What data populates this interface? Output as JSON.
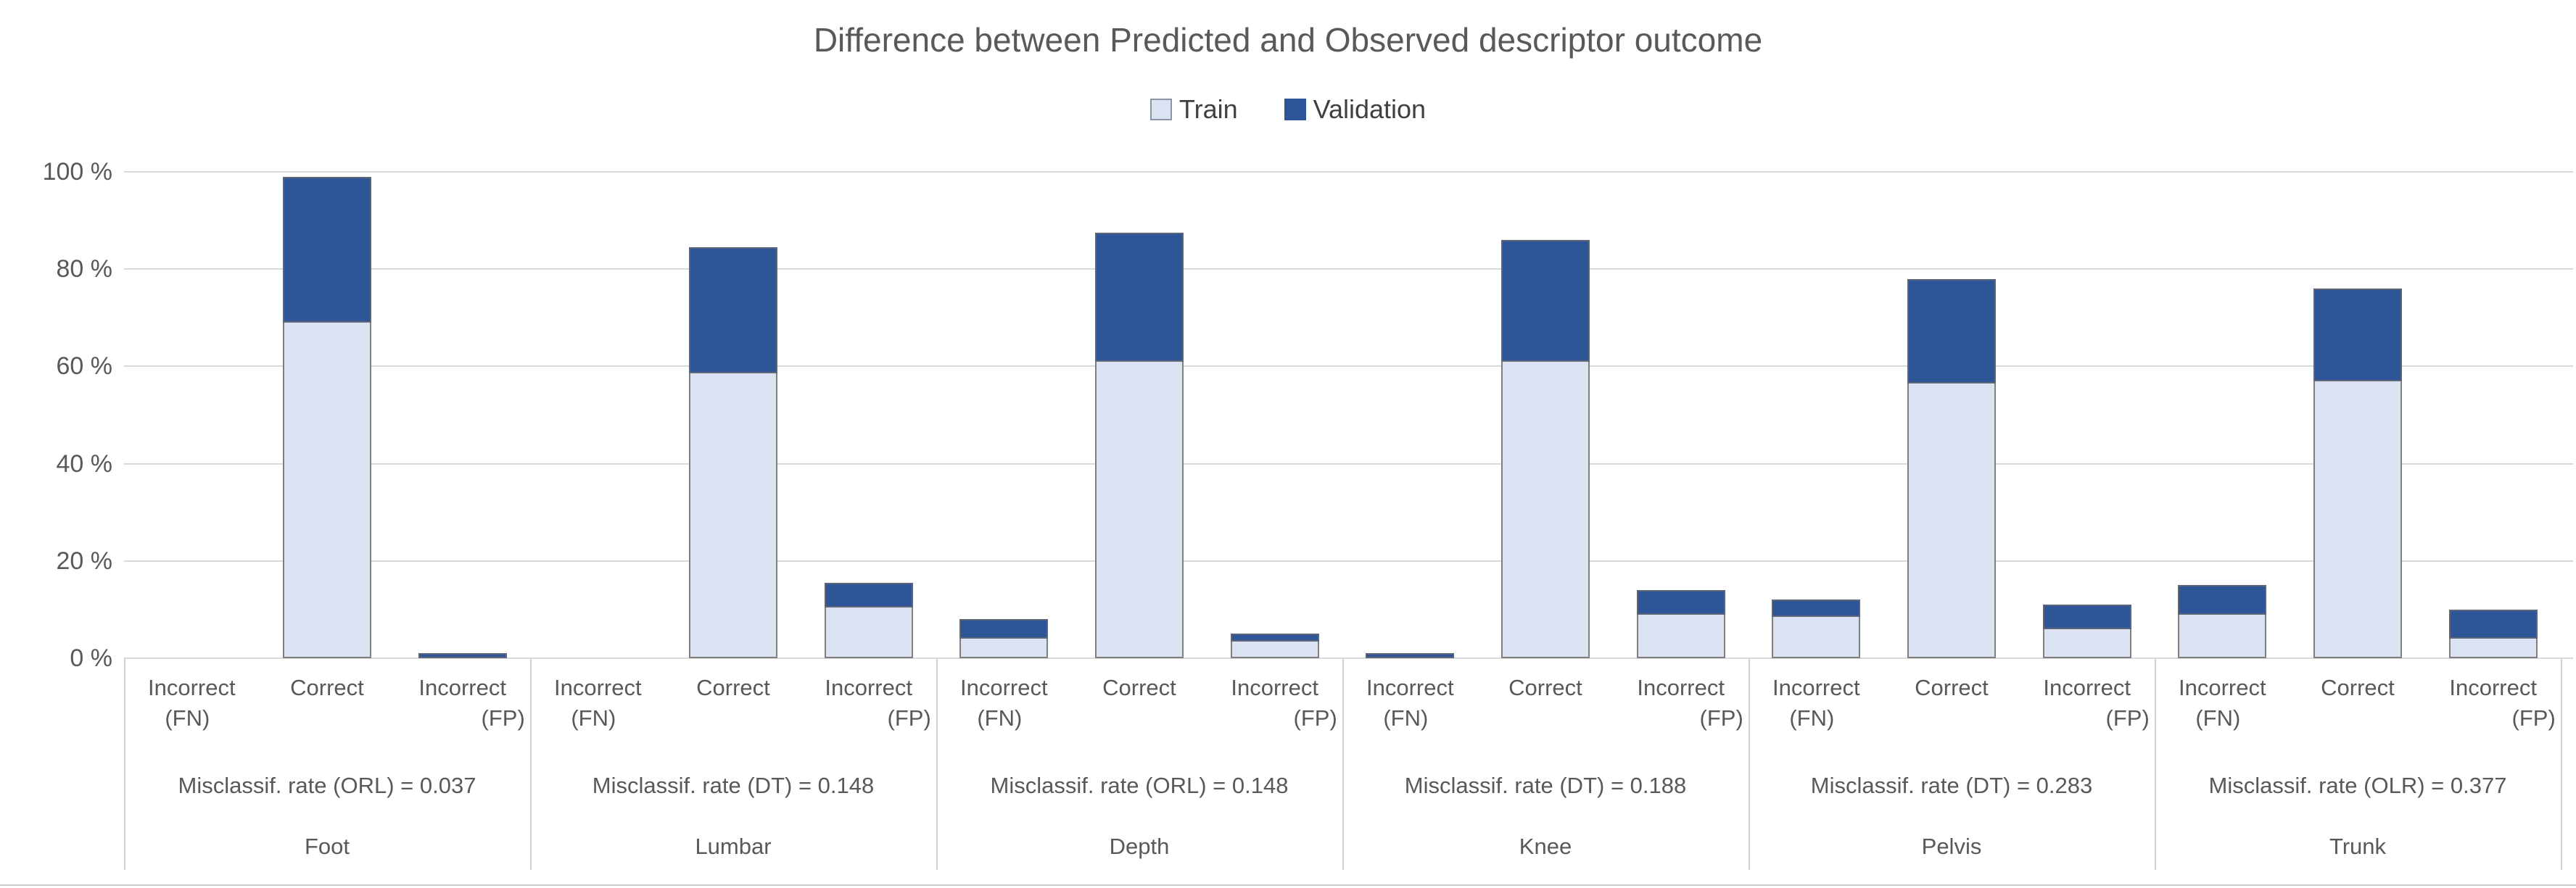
{
  "chart_data": {
    "type": "bar",
    "stacked": true,
    "title": "Difference between Predicted and Observed descriptor outcome",
    "unit": "%",
    "ylim": [
      0,
      100
    ],
    "yticks": [
      "0 %",
      "20 %",
      "40 %",
      "60 %",
      "80 %",
      "100 %"
    ],
    "grid": true,
    "legend_position": "top-center",
    "series": [
      {
        "name": "Train",
        "color": "#dbe3f2"
      },
      {
        "name": "Validation",
        "color": "#2e5597"
      }
    ],
    "bar_categories": [
      "Incorrect (FN)",
      "Correct",
      "Incorrect (FP)"
    ],
    "groups": [
      {
        "name": "Foot",
        "rate_label": "Misclassif. rate (ORL) = 0.037",
        "bars": [
          {
            "category": "Incorrect (FN)",
            "train": 0,
            "validation": 0
          },
          {
            "category": "Correct",
            "train": 69,
            "validation": 30
          },
          {
            "category": "Incorrect (FP)",
            "train": 0,
            "validation": 1
          }
        ]
      },
      {
        "name": "Lumbar",
        "rate_label": "Misclassif. rate (DT) = 0.148",
        "bars": [
          {
            "category": "Incorrect (FN)",
            "train": 0,
            "validation": 0
          },
          {
            "category": "Correct",
            "train": 58.5,
            "validation": 26
          },
          {
            "category": "Incorrect (FP)",
            "train": 10.5,
            "validation": 5
          }
        ]
      },
      {
        "name": "Depth",
        "rate_label": "Misclassif. rate (ORL) = 0.148",
        "bars": [
          {
            "category": "Incorrect (FN)",
            "train": 4,
            "validation": 4
          },
          {
            "category": "Correct",
            "train": 61,
            "validation": 26.5
          },
          {
            "category": "Incorrect (FP)",
            "train": 3.5,
            "validation": 1.5
          }
        ]
      },
      {
        "name": "Knee",
        "rate_label": "Misclassif. rate (DT) = 0.188",
        "bars": [
          {
            "category": "Incorrect (FN)",
            "train": 0,
            "validation": 1
          },
          {
            "category": "Correct",
            "train": 61,
            "validation": 25
          },
          {
            "category": "Incorrect (FP)",
            "train": 9,
            "validation": 5
          }
        ]
      },
      {
        "name": "Pelvis",
        "rate_label": "Misclassif. rate (DT) = 0.283",
        "bars": [
          {
            "category": "Incorrect (FN)",
            "train": 8.5,
            "validation": 3.5
          },
          {
            "category": "Correct",
            "train": 56.5,
            "validation": 21.5
          },
          {
            "category": "Incorrect (FP)",
            "train": 6,
            "validation": 5
          }
        ]
      },
      {
        "name": "Trunk",
        "rate_label": "Misclassif. rate (OLR) = 0.377",
        "bars": [
          {
            "category": "Incorrect (FN)",
            "train": 9,
            "validation": 6
          },
          {
            "category": "Correct",
            "train": 57,
            "validation": 19
          },
          {
            "category": "Incorrect (FP)",
            "train": 4,
            "validation": 6
          }
        ]
      }
    ],
    "colors": {
      "train": "#dbe3f2",
      "validation": "#2e5597",
      "text": "#595959",
      "gridline": "#d9d9d9"
    }
  }
}
